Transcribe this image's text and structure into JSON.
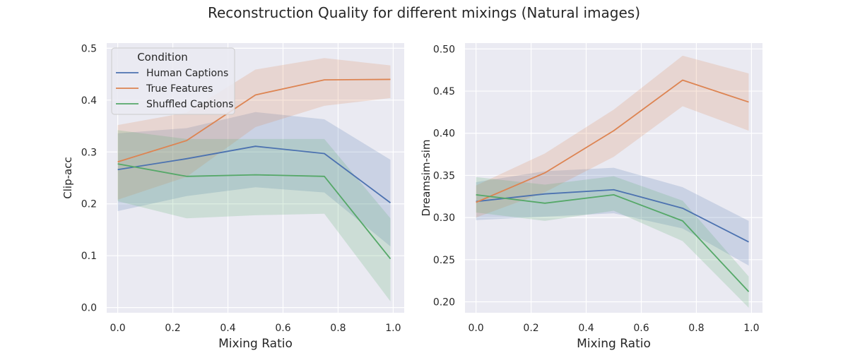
{
  "figure": {
    "title": "Reconstruction Quality for different mixings (Natural images)"
  },
  "colors": {
    "plot_background": "#EAEAF2",
    "grid": "#FFFFFF",
    "legend_frame": "#CCCCCC"
  },
  "chart_data": [
    {
      "type": "line",
      "xlabel": "Mixing Ratio",
      "ylabel": "Clip-acc",
      "xlim": [
        -0.04,
        1.04
      ],
      "ylim": [
        -0.01,
        0.51
      ],
      "xticks": [
        0.0,
        0.2,
        0.4,
        0.6,
        0.8,
        1.0
      ],
      "xtick_labels": [
        "0.0",
        "0.2",
        "0.4",
        "0.6",
        "0.8",
        "1.0"
      ],
      "yticks": [
        0.0,
        0.1,
        0.2,
        0.3,
        0.4,
        0.5
      ],
      "ytick_labels": [
        "0.0",
        "0.1",
        "0.2",
        "0.3",
        "0.4",
        "0.5"
      ],
      "grid": true,
      "legend": {
        "title": "Condition",
        "placement": "top-left"
      },
      "x": [
        0.0,
        0.25,
        0.5,
        0.75,
        0.99
      ],
      "series": [
        {
          "name": "Human Captions",
          "color": "#4C72B0",
          "values": [
            0.266,
            0.287,
            0.311,
            0.297,
            0.202
          ],
          "ci_low": [
            0.186,
            0.215,
            0.232,
            0.222,
            0.118
          ],
          "ci_high": [
            0.336,
            0.346,
            0.377,
            0.363,
            0.285
          ]
        },
        {
          "name": "True Features",
          "color": "#DD8452",
          "values": [
            0.281,
            0.322,
            0.41,
            0.439,
            0.44
          ],
          "ci_low": [
            0.208,
            0.252,
            0.348,
            0.389,
            0.404
          ],
          "ci_high": [
            0.352,
            0.376,
            0.459,
            0.481,
            0.467
          ]
        },
        {
          "name": "Shuffled Captions",
          "color": "#55A868",
          "values": [
            0.277,
            0.253,
            0.256,
            0.253,
            0.094
          ],
          "ci_low": [
            0.205,
            0.172,
            0.178,
            0.181,
            0.012
          ],
          "ci_high": [
            0.342,
            0.325,
            0.325,
            0.325,
            0.172
          ]
        }
      ]
    },
    {
      "type": "line",
      "xlabel": "Mixing Ratio",
      "ylabel": "Dreamsim-sim",
      "xlim": [
        -0.04,
        1.04
      ],
      "ylim": [
        0.187,
        0.507
      ],
      "xticks": [
        0.0,
        0.2,
        0.4,
        0.6,
        0.8,
        1.0
      ],
      "xtick_labels": [
        "0.0",
        "0.2",
        "0.4",
        "0.6",
        "0.8",
        "1.0"
      ],
      "yticks": [
        0.2,
        0.25,
        0.3,
        0.35,
        0.4,
        0.45,
        0.5
      ],
      "ytick_labels": [
        "0.20",
        "0.25",
        "0.30",
        "0.35",
        "0.40",
        "0.45",
        "0.50"
      ],
      "grid": true,
      "x": [
        0.0,
        0.25,
        0.5,
        0.75,
        0.99
      ],
      "series": [
        {
          "name": "Human Captions",
          "color": "#4C72B0",
          "values": [
            0.319,
            0.328,
            0.333,
            0.311,
            0.271
          ],
          "ci_low": [
            0.297,
            0.301,
            0.305,
            0.287,
            0.243
          ],
          "ci_high": [
            0.342,
            0.355,
            0.359,
            0.336,
            0.296
          ]
        },
        {
          "name": "True Features",
          "color": "#DD8452",
          "values": [
            0.318,
            0.353,
            0.403,
            0.463,
            0.437
          ],
          "ci_low": [
            0.3,
            0.33,
            0.372,
            0.432,
            0.403
          ],
          "ci_high": [
            0.338,
            0.376,
            0.428,
            0.492,
            0.471
          ]
        },
        {
          "name": "Shuffled Captions",
          "color": "#55A868",
          "values": [
            0.327,
            0.317,
            0.327,
            0.296,
            0.212
          ],
          "ci_low": [
            0.306,
            0.296,
            0.308,
            0.272,
            0.193
          ],
          "ci_high": [
            0.348,
            0.339,
            0.349,
            0.32,
            0.23
          ]
        }
      ]
    }
  ]
}
